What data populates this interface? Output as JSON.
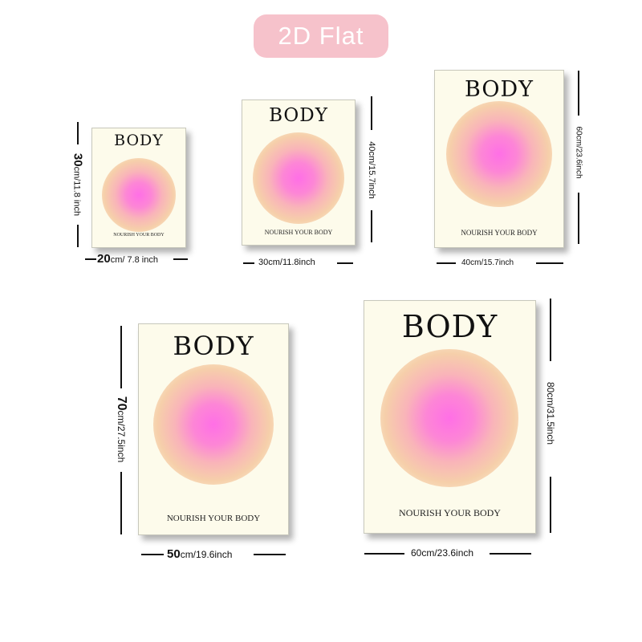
{
  "badge": "2D Flat",
  "posters": [
    {
      "title": "BODY",
      "tagline": "NOURISH YOUR BODY",
      "height_dim_num": "30",
      "height_dim_rest": "cm/11.8 inch",
      "width_dim_num": "20",
      "width_dim_rest": "cm/ 7.8 inch"
    },
    {
      "title": "BODY",
      "tagline": "NOURISH YOUR BODY",
      "height_dim": "40cm/15.7inch",
      "width_dim": "30cm/11.8inch"
    },
    {
      "title": "BODY",
      "tagline": "NOURISH YOUR BODY",
      "height_dim": "60cm/23.6inch",
      "width_dim": "40cm/15.7inch"
    },
    {
      "title": "BODY",
      "tagline": "NOURISH YOUR BODY",
      "height_dim_num": "70",
      "height_dim_rest": "cm/27.5inch",
      "width_dim_num": "50",
      "width_dim_rest": "cm/19.6inch"
    },
    {
      "title": "BODY",
      "tagline": "NOURISH YOUR BODY",
      "height_dim": "80cm/31.5inch",
      "width_dim": "60cm/23.6inch"
    }
  ],
  "colors": {
    "badge": "#f6c2cb",
    "poster_bg": "#fdfbeb",
    "gradient_center": "#ff6fe6",
    "gradient_outer": "#f6cfaa"
  }
}
